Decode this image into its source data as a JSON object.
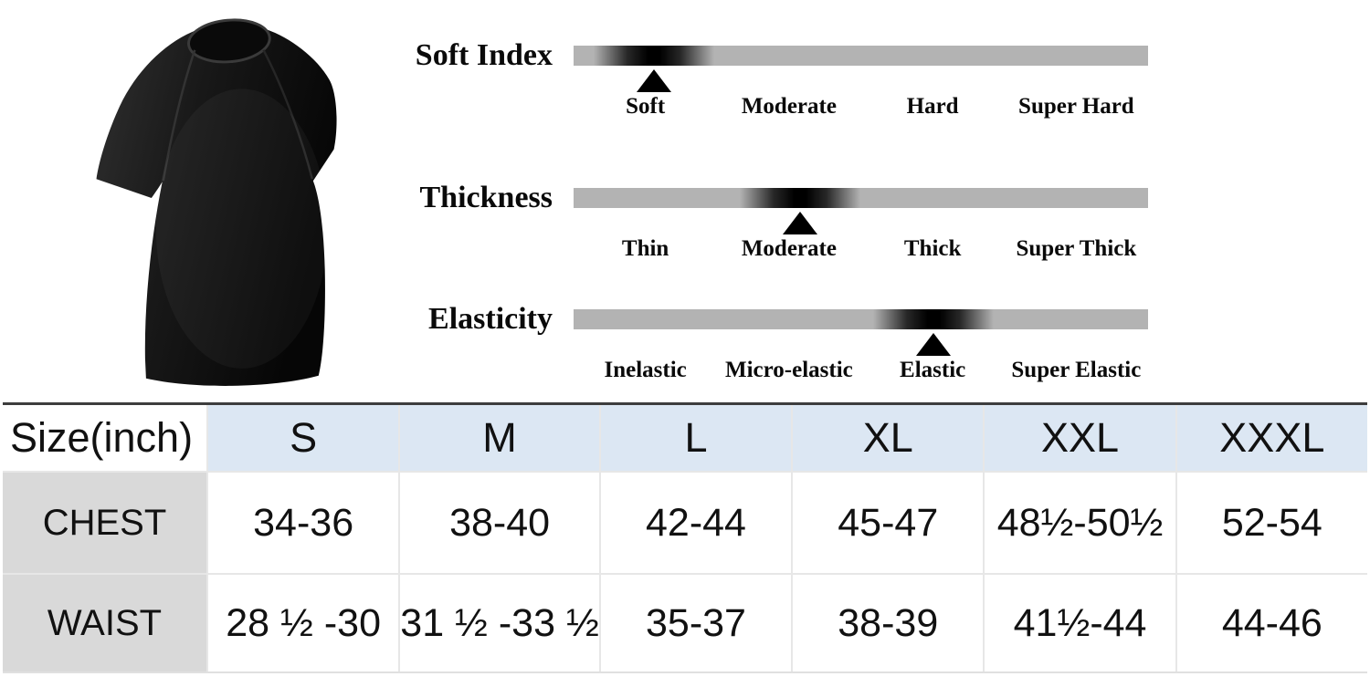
{
  "product": {
    "image_alt": "Black crew-neck short-sleeve t-shirt, three-quarter view"
  },
  "colors": {
    "scale_bar_gray": "#b3b3b3",
    "scale_spot_black": "#000000",
    "header_blue": "#dce7f3",
    "row_header_gray": "#d9d9d9",
    "table_top_border": "#3d3d3d",
    "text": "#111111",
    "shirt_black": "#141414"
  },
  "scales": [
    {
      "title": "Soft Index",
      "labels": [
        "Soft",
        "Moderate",
        "Hard",
        "Super Hard"
      ],
      "selected": "Soft",
      "marker_percent": 14
    },
    {
      "title": "Thickness",
      "labels": [
        "Thin",
        "Moderate",
        "Thick",
        "Super Thick"
      ],
      "selected": "Moderate",
      "marker_percent": 39.4
    },
    {
      "title": "Elasticity",
      "labels": [
        "Inelastic",
        "Micro-elastic",
        "Elastic",
        "Super Elastic"
      ],
      "selected": "Elastic",
      "marker_percent": 62.6
    }
  ],
  "size_table": {
    "corner_label": "Size(inch)",
    "columns": [
      "S",
      "M",
      "L",
      "XL",
      "XXL",
      "XXXL"
    ],
    "rows": [
      {
        "label": "CHEST",
        "values": [
          "34-36",
          "38-40",
          "42-44",
          "45-47",
          "48½-50½",
          "52-54"
        ]
      },
      {
        "label": "WAIST",
        "values": [
          "28 ½ -30",
          "31 ½ -33 ½",
          "35-37",
          "38-39",
          "41½-44",
          "44-46"
        ]
      }
    ]
  }
}
